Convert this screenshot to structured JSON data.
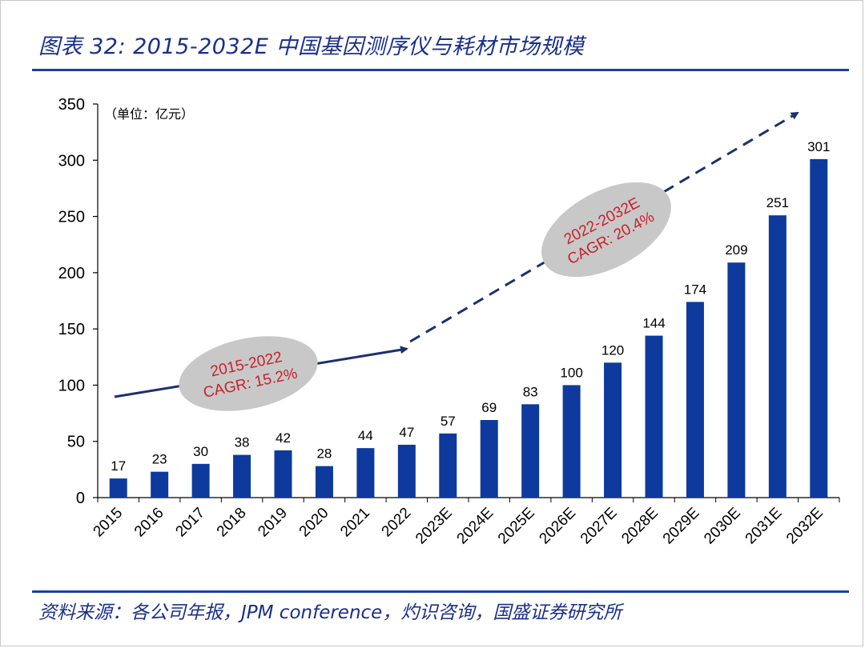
{
  "header": {
    "title": "图表 32:  2015-2032E 中国基因测序仪与耗材市场规模"
  },
  "footer": {
    "source": "资料来源：各公司年报，JPM conference，灼识咨询，国盛证券研究所"
  },
  "chart_data": {
    "type": "bar",
    "title": "2015-2032E 中国基因测序仪与耗材市场规模",
    "unit_label": "（单位：亿元）",
    "categories": [
      "2015",
      "2016",
      "2017",
      "2018",
      "2019",
      "2020",
      "2021",
      "2022",
      "2023E",
      "2024E",
      "2025E",
      "2026E",
      "2027E",
      "2028E",
      "2029E",
      "2030E",
      "2031E",
      "2032E"
    ],
    "values": [
      17,
      23,
      30,
      38,
      42,
      28,
      44,
      47,
      57,
      69,
      83,
      100,
      120,
      144,
      174,
      209,
      251,
      301
    ],
    "ylim": [
      0,
      350
    ],
    "yticks": [
      0,
      50,
      100,
      150,
      200,
      250,
      300,
      350
    ],
    "grid": false,
    "bar_color": "#0d3a9c",
    "arrow_color": "#1a3070",
    "annotations": [
      {
        "id": "cagr-2015-2022",
        "lines": [
          "2015-2022",
          "CAGR: 15.2%"
        ]
      },
      {
        "id": "cagr-2022-2032",
        "lines": [
          "2022-2032E",
          "CAGR: 20.4%"
        ]
      }
    ]
  }
}
